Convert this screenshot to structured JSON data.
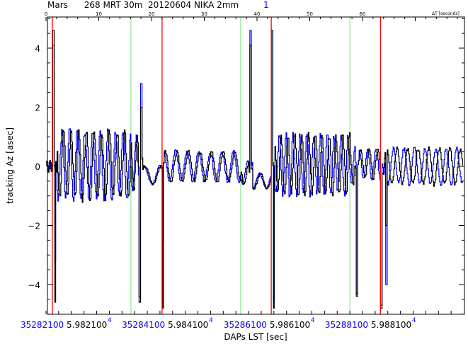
{
  "chart_data": {
    "type": "line",
    "title_black": "Mars      268 MRT 30m  20120604 NIKA 2mm",
    "title_blue": "1",
    "xlabel": "DAPs LST [sec]",
    "ylabel": "tracking Az [asec]",
    "ylim": [
      -5,
      5
    ],
    "yticks": [
      -4,
      -2,
      0,
      2,
      4
    ],
    "top_axis": {
      "label": "ΔT [seconds]",
      "range": [
        0,
        79
      ],
      "ticks": [
        0,
        10,
        20,
        30,
        40,
        50,
        60
      ]
    },
    "bottom_ticks": [
      {
        "t": 4.3,
        "blue": "35282100",
        "black": "5.982100",
        "exp": "4"
      },
      {
        "t": 23.5,
        "blue": "35284100",
        "black": "5.984100",
        "exp": "4"
      },
      {
        "t": 42.8,
        "blue": "35286100",
        "black": "5.986100",
        "exp": "4"
      },
      {
        "t": 62.0,
        "blue": "35288100",
        "black": "5.988100",
        "exp": "4"
      }
    ],
    "markers": {
      "red": [
        1.2,
        22.0,
        42.7,
        63.4
      ],
      "green": [
        16.1,
        36.9,
        57.6
      ]
    },
    "series_colors": {
      "black": "#000000",
      "blue": "#0000ff",
      "red": "#ff0000",
      "green": "#00d000"
    },
    "segments": [
      {
        "t0": 0,
        "t1": 1.2,
        "mean": 0,
        "amp": 0.2,
        "period": 0.6,
        "blue_phase": 0.1
      },
      {
        "t0": 2.0,
        "t1": 16.1,
        "mean": 0.05,
        "amp": 1.15,
        "period": 1.45,
        "blue_phase": 0.3
      },
      {
        "t0": 16.1,
        "t1": 17.4,
        "mean": 0.1,
        "amp": 0.9,
        "period": 1.3,
        "blue_phase": 0.2
      },
      {
        "t0": 18.3,
        "t1": 22.0,
        "mean": -0.3,
        "amp": 0.3,
        "period": 3.0,
        "blue_phase": 0.2
      },
      {
        "t0": 22.4,
        "t1": 36.9,
        "mean": 0.0,
        "amp": 0.5,
        "period": 2.2,
        "blue_phase": 0.3
      },
      {
        "t0": 36.9,
        "t1": 38.4,
        "mean": -0.2,
        "amp": 0.4,
        "period": 2.0,
        "blue_phase": 0.3
      },
      {
        "t0": 39.2,
        "t1": 42.7,
        "mean": -0.5,
        "amp": 0.25,
        "period": 2.5,
        "blue_phase": 0.2
      },
      {
        "t0": 43.3,
        "t1": 57.6,
        "mean": 0.05,
        "amp": 1.0,
        "period": 1.3,
        "blue_phase": 0.35
      },
      {
        "t0": 57.6,
        "t1": 58.6,
        "mean": 0.0,
        "amp": 0.6,
        "period": 1.3,
        "blue_phase": 0.3
      },
      {
        "t0": 59.3,
        "t1": 63.3,
        "mean": 0.1,
        "amp": 0.5,
        "period": 1.6,
        "blue_phase": 0.3
      },
      {
        "t0": 64.2,
        "t1": 79,
        "mean": 0.0,
        "amp": 0.6,
        "period": 2.0,
        "blue_phase": 0.7
      }
    ],
    "spikes": [
      {
        "t": 1.3,
        "black": 4.6,
        "blue": 4.1
      },
      {
        "t": 1.7,
        "black": -4.6,
        "blue": -3.2
      },
      {
        "t": 17.7,
        "black": -4.6,
        "blue": -4.4
      },
      {
        "t": 18.0,
        "black": 2.0,
        "blue": 2.8
      },
      {
        "t": 22.1,
        "black": -4.8,
        "blue": -2.6
      },
      {
        "t": 38.7,
        "black": 4.1,
        "blue": 4.6
      },
      {
        "t": 42.8,
        "black": 4.6,
        "blue": 4.6
      },
      {
        "t": 43.1,
        "black": -4.8,
        "blue": -4.6
      },
      {
        "t": 58.9,
        "black": -4.4,
        "blue": -4.3
      },
      {
        "t": 63.5,
        "black": -4.8,
        "blue": -4.7
      },
      {
        "t": 64.5,
        "black": -2.0,
        "blue": -4.0
      }
    ]
  }
}
